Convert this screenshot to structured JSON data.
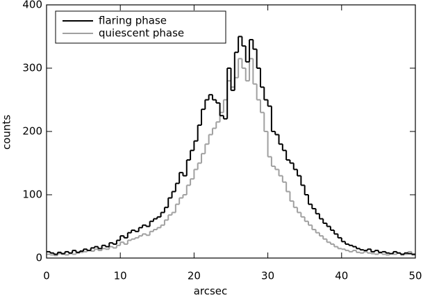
{
  "chart_data": {
    "type": "histogram",
    "xlabel": "arcsec",
    "ylabel": "counts",
    "bins": [
      0,
      0.5,
      1,
      1.5,
      2,
      2.5,
      3,
      3.5,
      4,
      4.5,
      5,
      5.5,
      6,
      6.5,
      7,
      7.5,
      8,
      8.5,
      9,
      9.5,
      10,
      10.5,
      11,
      11.5,
      12,
      12.5,
      13,
      13.5,
      14,
      14.5,
      15,
      15.5,
      16,
      16.5,
      17,
      17.5,
      18,
      18.5,
      19,
      19.5,
      20,
      20.5,
      21,
      21.5,
      22,
      22.5,
      23,
      23.5,
      24,
      24.5,
      25,
      25.5,
      26,
      26.5,
      27,
      27.5,
      28,
      28.5,
      29,
      29.5,
      30,
      30.5,
      31,
      31.5,
      32,
      32.5,
      33,
      33.5,
      34,
      34.5,
      35,
      35.5,
      36,
      36.5,
      37,
      37.5,
      38,
      38.5,
      39,
      39.5,
      40,
      40.5,
      41,
      41.5,
      42,
      42.5,
      43,
      43.5,
      44,
      44.5,
      45,
      45.5,
      46,
      46.5,
      47,
      47.5,
      48,
      48.5,
      49,
      49.5,
      50
    ],
    "series": [
      {
        "name": "flaring phase",
        "color": "#000000",
        "values": [
          10,
          8,
          6,
          9,
          7,
          10,
          8,
          12,
          9,
          11,
          14,
          12,
          16,
          18,
          15,
          20,
          18,
          24,
          22,
          28,
          35,
          32,
          40,
          44,
          42,
          48,
          52,
          50,
          58,
          62,
          65,
          72,
          80,
          95,
          105,
          118,
          135,
          130,
          155,
          170,
          185,
          210,
          235,
          250,
          258,
          250,
          245,
          225,
          220,
          300,
          265,
          325,
          350,
          335,
          310,
          345,
          330,
          300,
          270,
          250,
          240,
          200,
          195,
          180,
          170,
          155,
          150,
          140,
          130,
          115,
          100,
          85,
          78,
          70,
          62,
          55,
          50,
          44,
          38,
          32,
          26,
          22,
          20,
          18,
          15,
          13,
          12,
          14,
          10,
          12,
          9,
          10,
          8,
          7,
          10,
          8,
          6,
          8,
          7,
          6
        ]
      },
      {
        "name": "quiescent phase",
        "color": "#a0a0a0",
        "values": [
          6,
          5,
          4,
          7,
          6,
          5,
          7,
          6,
          8,
          9,
          10,
          12,
          11,
          14,
          12,
          15,
          14,
          18,
          16,
          20,
          25,
          22,
          28,
          30,
          32,
          35,
          38,
          36,
          42,
          45,
          48,
          52,
          60,
          68,
          72,
          85,
          95,
          100,
          115,
          125,
          140,
          150,
          165,
          180,
          195,
          205,
          215,
          230,
          250,
          280,
          270,
          285,
          315,
          300,
          280,
          315,
          275,
          250,
          230,
          200,
          160,
          145,
          140,
          130,
          120,
          105,
          90,
          80,
          72,
          65,
          58,
          52,
          45,
          40,
          35,
          30,
          25,
          22,
          18,
          15,
          14,
          12,
          10,
          12,
          9,
          8,
          10,
          8,
          7,
          6,
          8,
          6,
          5,
          7,
          6,
          8,
          5,
          6,
          10,
          5
        ]
      }
    ],
    "xlim": [
      0,
      50
    ],
    "ylim": [
      0,
      400
    ],
    "xticks": [
      0,
      10,
      20,
      30,
      40,
      50
    ],
    "yticks": [
      0,
      100,
      200,
      300,
      400
    ]
  }
}
